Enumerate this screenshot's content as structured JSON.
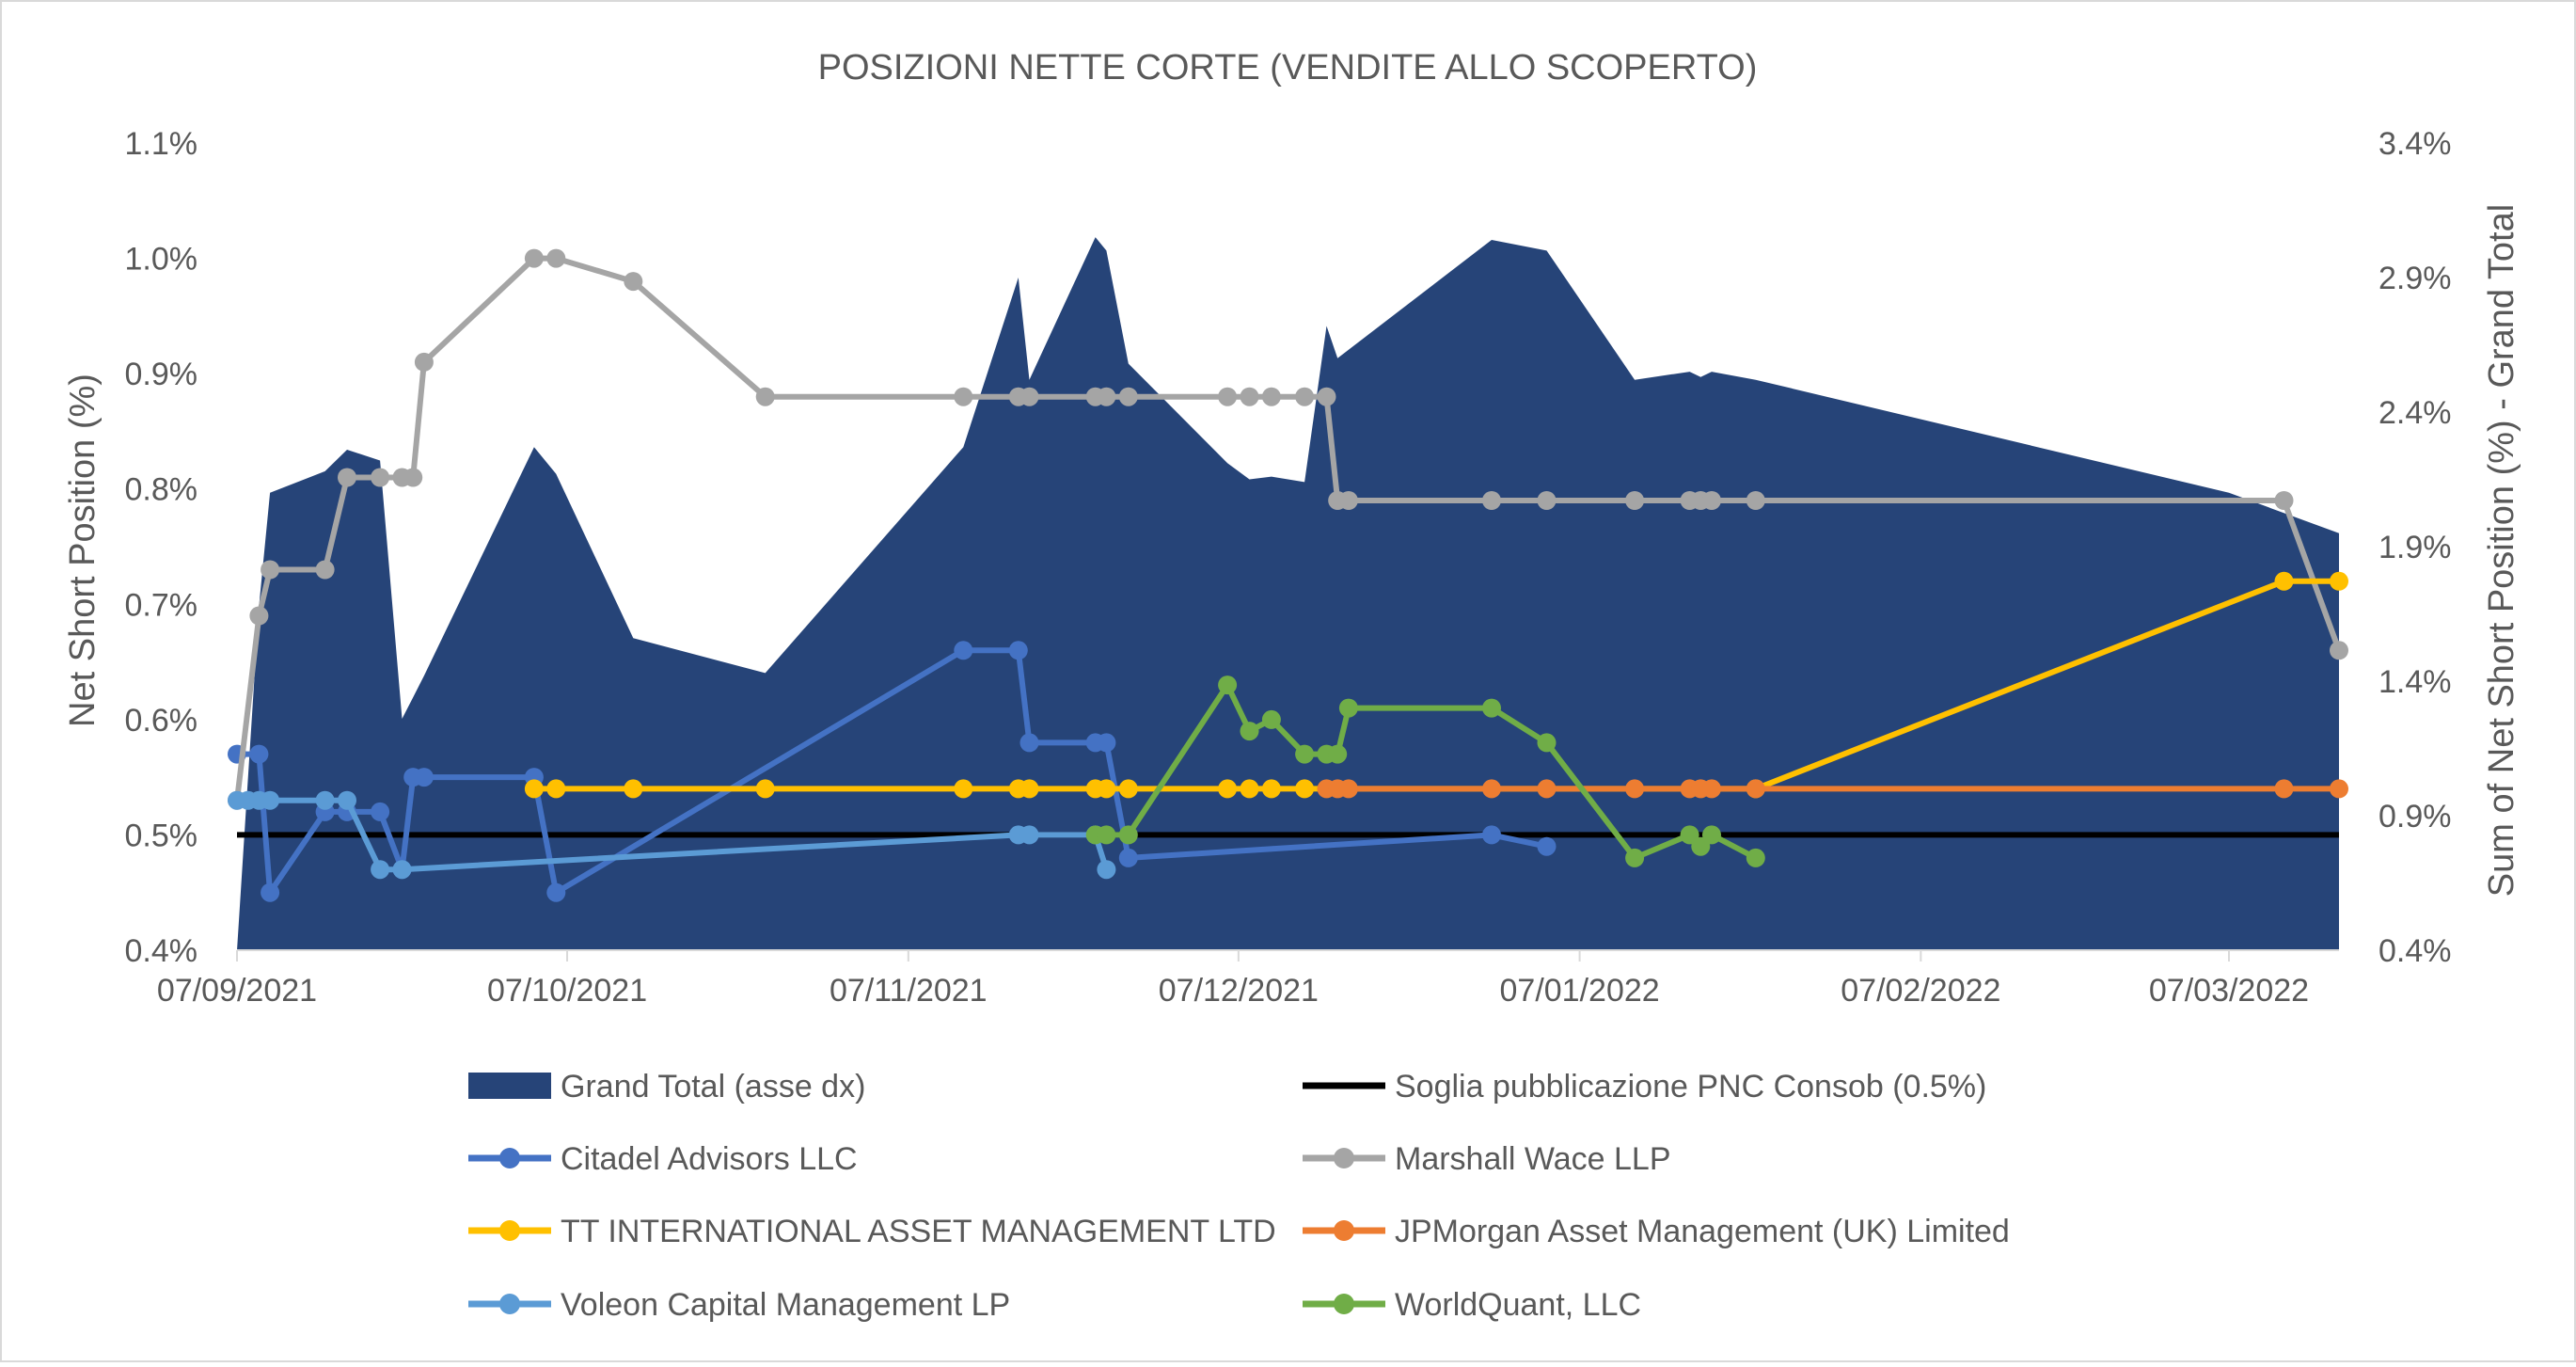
{
  "chart_data": {
    "type": "line",
    "title": "POSIZIONI NETTE CORTE (VENDITE ALLO SCOPERTO)",
    "xlabel": "",
    "ylabel": "Net Short Position (%)",
    "y2label": "Sum of Net Short Position (%)  - Grand Total",
    "x_range": [
      "2021-09-07",
      "2022-03-17"
    ],
    "x_ticks": [
      "07/09/2021",
      "07/10/2021",
      "07/11/2021",
      "07/12/2021",
      "07/01/2022",
      "07/02/2022",
      "07/03/2022"
    ],
    "x_tick_dates": [
      "2021-09-07",
      "2021-10-07",
      "2021-11-07",
      "2021-12-07",
      "2022-01-07",
      "2022-02-07",
      "2022-03-07"
    ],
    "ylim": [
      0.4,
      1.1
    ],
    "y_ticks": [
      "0.4%",
      "0.5%",
      "0.6%",
      "0.7%",
      "0.8%",
      "0.9%",
      "1.0%",
      "1.1%"
    ],
    "y_tick_values": [
      0.4,
      0.5,
      0.6,
      0.7,
      0.8,
      0.9,
      1.0,
      1.1
    ],
    "y2lim": [
      0.4,
      3.4
    ],
    "y2_ticks": [
      "0.4%",
      "0.9%",
      "1.4%",
      "1.9%",
      "2.4%",
      "2.9%",
      "3.4%"
    ],
    "y2_tick_values": [
      0.4,
      0.9,
      1.4,
      1.9,
      2.4,
      2.9,
      3.4
    ],
    "grid": false,
    "legend_position": "bottom",
    "area": {
      "name": "Grand Total (asse dx)",
      "color": "#264478",
      "axis": "right",
      "points": [
        [
          "2021-09-07",
          0.4
        ],
        [
          "2021-09-09",
          1.68
        ],
        [
          "2021-09-10",
          2.1
        ],
        [
          "2021-09-15",
          2.18
        ],
        [
          "2021-09-17",
          2.26
        ],
        [
          "2021-09-20",
          2.22
        ],
        [
          "2021-09-22",
          1.26
        ],
        [
          "2021-09-23",
          1.34
        ],
        [
          "2021-09-24",
          1.42
        ],
        [
          "2021-10-04",
          2.27
        ],
        [
          "2021-10-06",
          2.17
        ],
        [
          "2021-10-13",
          1.56
        ],
        [
          "2021-10-25",
          1.43
        ],
        [
          "2021-11-12",
          2.27
        ],
        [
          "2021-11-17",
          2.9
        ],
        [
          "2021-11-18",
          2.52
        ],
        [
          "2021-11-24",
          3.05
        ],
        [
          "2021-11-25",
          3.0
        ],
        [
          "2021-11-27",
          2.58
        ],
        [
          "2021-12-06",
          2.21
        ],
        [
          "2021-12-08",
          2.15
        ],
        [
          "2021-12-10",
          2.16
        ],
        [
          "2021-12-13",
          2.14
        ],
        [
          "2021-12-15",
          2.72
        ],
        [
          "2021-12-16",
          2.6
        ],
        [
          "2021-12-30",
          3.04
        ],
        [
          "2022-01-04",
          3.0
        ],
        [
          "2022-01-12",
          2.52
        ],
        [
          "2022-01-17",
          2.55
        ],
        [
          "2022-01-18",
          2.53
        ],
        [
          "2022-01-19",
          2.55
        ],
        [
          "2022-01-23",
          2.52
        ],
        [
          "2022-03-07",
          2.1
        ],
        [
          "2022-03-17",
          1.95
        ]
      ]
    },
    "threshold": {
      "name": "Soglia pubblicazione PNC Consob (0.5%)",
      "color": "#000000",
      "value": 0.5
    },
    "series": [
      {
        "name": "Citadel Advisors LLC",
        "color": "#4472C4",
        "points": [
          [
            "2021-09-07",
            0.57
          ],
          [
            "2021-09-09",
            0.57
          ],
          [
            "2021-09-10",
            0.45
          ],
          [
            "2021-09-15",
            0.52
          ],
          [
            "2021-09-17",
            0.52
          ],
          [
            "2021-09-20",
            0.52
          ],
          [
            "2021-09-22",
            0.47
          ],
          [
            "2021-09-23",
            0.55
          ],
          [
            "2021-09-24",
            0.55
          ],
          [
            "2021-10-04",
            0.55
          ],
          [
            "2021-10-06",
            0.45
          ],
          [
            "2021-11-12",
            0.66
          ],
          [
            "2021-11-17",
            0.66
          ],
          [
            "2021-11-18",
            0.58
          ],
          [
            "2021-11-24",
            0.58
          ],
          [
            "2021-11-25",
            0.58
          ],
          [
            "2021-11-27",
            0.48
          ],
          [
            "2021-12-30",
            0.5
          ],
          [
            "2022-01-04",
            0.49
          ]
        ]
      },
      {
        "name": "Marshall Wace LLP",
        "color": "#A5A5A5",
        "points": [
          [
            "2021-09-07",
            0.53
          ],
          [
            "2021-09-09",
            0.69
          ],
          [
            "2021-09-10",
            0.73
          ],
          [
            "2021-09-15",
            0.73
          ],
          [
            "2021-09-17",
            0.81
          ],
          [
            "2021-09-20",
            0.81
          ],
          [
            "2021-09-22",
            0.81
          ],
          [
            "2021-09-23",
            0.81
          ],
          [
            "2021-09-24",
            0.91
          ],
          [
            "2021-10-04",
            1.0
          ],
          [
            "2021-10-06",
            1.0
          ],
          [
            "2021-10-13",
            0.98
          ],
          [
            "2021-10-25",
            0.88
          ],
          [
            "2021-11-12",
            0.88
          ],
          [
            "2021-11-17",
            0.88
          ],
          [
            "2021-11-18",
            0.88
          ],
          [
            "2021-11-24",
            0.88
          ],
          [
            "2021-11-25",
            0.88
          ],
          [
            "2021-11-27",
            0.88
          ],
          [
            "2021-12-06",
            0.88
          ],
          [
            "2021-12-08",
            0.88
          ],
          [
            "2021-12-10",
            0.88
          ],
          [
            "2021-12-13",
            0.88
          ],
          [
            "2021-12-15",
            0.88
          ],
          [
            "2021-12-16",
            0.79
          ],
          [
            "2021-12-17",
            0.79
          ],
          [
            "2021-12-30",
            0.79
          ],
          [
            "2022-01-04",
            0.79
          ],
          [
            "2022-01-12",
            0.79
          ],
          [
            "2022-01-17",
            0.79
          ],
          [
            "2022-01-18",
            0.79
          ],
          [
            "2022-01-19",
            0.79
          ],
          [
            "2022-01-23",
            0.79
          ],
          [
            "2022-03-12",
            0.79
          ],
          [
            "2022-03-17",
            0.66
          ]
        ]
      },
      {
        "name": "TT INTERNATIONAL ASSET MANAGEMENT LTD",
        "color": "#FFC000",
        "points": [
          [
            "2021-10-04",
            0.54
          ],
          [
            "2021-10-06",
            0.54
          ],
          [
            "2021-10-13",
            0.54
          ],
          [
            "2021-10-25",
            0.54
          ],
          [
            "2021-11-12",
            0.54
          ],
          [
            "2021-11-17",
            0.54
          ],
          [
            "2021-11-18",
            0.54
          ],
          [
            "2021-11-24",
            0.54
          ],
          [
            "2021-11-25",
            0.54
          ],
          [
            "2021-11-27",
            0.54
          ],
          [
            "2021-12-06",
            0.54
          ],
          [
            "2021-12-08",
            0.54
          ],
          [
            "2021-12-10",
            0.54
          ],
          [
            "2021-12-13",
            0.54
          ],
          [
            "2022-01-23",
            0.54
          ],
          [
            "2022-03-12",
            0.72
          ],
          [
            "2022-03-17",
            0.72
          ]
        ]
      },
      {
        "name": "JPMorgan Asset Management (UK) Limited",
        "color": "#ED7D31",
        "points": [
          [
            "2021-12-15",
            0.54
          ],
          [
            "2021-12-16",
            0.54
          ],
          [
            "2021-12-17",
            0.54
          ],
          [
            "2021-12-30",
            0.54
          ],
          [
            "2022-01-04",
            0.54
          ],
          [
            "2022-01-12",
            0.54
          ],
          [
            "2022-01-17",
            0.54
          ],
          [
            "2022-01-18",
            0.54
          ],
          [
            "2022-01-19",
            0.54
          ],
          [
            "2022-01-23",
            0.54
          ],
          [
            "2022-03-12",
            0.54
          ],
          [
            "2022-03-17",
            0.54
          ]
        ]
      },
      {
        "name": "Voleon Capital Management LP",
        "color": "#5B9BD5",
        "points": [
          [
            "2021-09-07",
            0.53
          ],
          [
            "2021-09-08",
            0.53
          ],
          [
            "2021-09-09",
            0.53
          ],
          [
            "2021-09-10",
            0.53
          ],
          [
            "2021-09-15",
            0.53
          ],
          [
            "2021-09-17",
            0.53
          ],
          [
            "2021-09-20",
            0.47
          ],
          [
            "2021-09-22",
            0.47
          ],
          [
            "2021-11-17",
            0.5
          ],
          [
            "2021-11-18",
            0.5
          ],
          [
            "2021-11-24",
            0.5
          ],
          [
            "2021-11-25",
            0.47
          ]
        ]
      },
      {
        "name": "WorldQuant, LLC",
        "color": "#70AD47",
        "points": [
          [
            "2021-11-24",
            0.5
          ],
          [
            "2021-11-25",
            0.5
          ],
          [
            "2021-11-27",
            0.5
          ],
          [
            "2021-12-06",
            0.63
          ],
          [
            "2021-12-08",
            0.59
          ],
          [
            "2021-12-10",
            0.6
          ],
          [
            "2021-12-13",
            0.57
          ],
          [
            "2021-12-15",
            0.57
          ],
          [
            "2021-12-16",
            0.57
          ],
          [
            "2021-12-17",
            0.61
          ],
          [
            "2021-12-30",
            0.61
          ],
          [
            "2022-01-04",
            0.58
          ],
          [
            "2022-01-12",
            0.48
          ],
          [
            "2022-01-17",
            0.5
          ],
          [
            "2022-01-18",
            0.49
          ],
          [
            "2022-01-19",
            0.5
          ],
          [
            "2022-01-23",
            0.48
          ]
        ]
      }
    ],
    "legend": [
      {
        "name": "Grand Total (asse dx)",
        "kind": "area",
        "color": "#264478"
      },
      {
        "name": "Soglia pubblicazione PNC Consob (0.5%)",
        "kind": "line",
        "color": "#000000"
      },
      {
        "name": "Citadel Advisors LLC",
        "kind": "marker-line",
        "color": "#4472C4"
      },
      {
        "name": "Marshall Wace LLP",
        "kind": "marker-line",
        "color": "#A5A5A5"
      },
      {
        "name": "TT INTERNATIONAL ASSET MANAGEMENT LTD",
        "kind": "marker-line",
        "color": "#FFC000"
      },
      {
        "name": "JPMorgan Asset Management (UK) Limited",
        "kind": "marker-line",
        "color": "#ED7D31"
      },
      {
        "name": "Voleon Capital Management LP",
        "kind": "marker-line",
        "color": "#5B9BD5"
      },
      {
        "name": "WorldQuant, LLC",
        "kind": "marker-line",
        "color": "#70AD47"
      }
    ]
  }
}
